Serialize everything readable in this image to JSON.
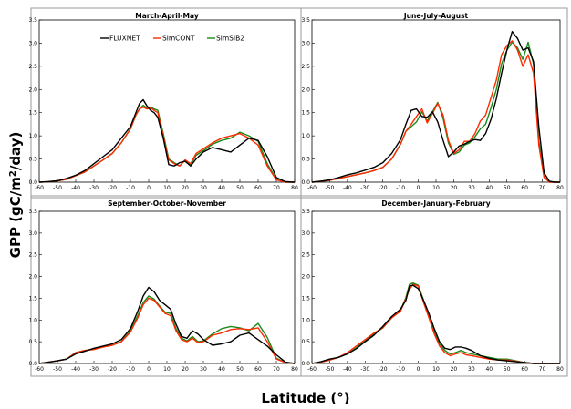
{
  "figure": {
    "ylabel": "GPP (gC/m²/day)",
    "xlabel": "Latitude (°)"
  },
  "legend": [
    {
      "name": "FLUXNET",
      "color": "#000000"
    },
    {
      "name": "SimCONT",
      "color": "#ff2a00"
    },
    {
      "name": "SimSIB2",
      "color": "#1a8a1a"
    }
  ],
  "chart_data": [
    {
      "type": "line",
      "title": "March-April-May",
      "xlim": [
        -60,
        80
      ],
      "ylim": [
        0,
        3.5
      ],
      "xticks": [
        -60,
        -50,
        -40,
        -30,
        -20,
        -10,
        0,
        10,
        20,
        30,
        40,
        50,
        60,
        70,
        80
      ],
      "yticks": [
        0.0,
        0.5,
        1.0,
        1.5,
        2.0,
        2.5,
        3.0,
        3.5
      ],
      "x": [
        -60,
        -55,
        -50,
        -45,
        -40,
        -35,
        -30,
        -25,
        -20,
        -15,
        -10,
        -7,
        -5,
        -3,
        -1,
        1,
        3,
        5,
        8,
        11,
        14,
        17,
        20,
        23,
        26,
        30,
        35,
        40,
        45,
        50,
        55,
        60,
        65,
        70,
        75,
        80
      ],
      "series": [
        {
          "name": "FLUXNET",
          "color": "#000000",
          "values": [
            0.0,
            0.01,
            0.03,
            0.08,
            0.15,
            0.25,
            0.4,
            0.55,
            0.7,
            0.95,
            1.2,
            1.5,
            1.7,
            1.78,
            1.65,
            1.55,
            1.5,
            1.4,
            0.95,
            0.38,
            0.35,
            0.42,
            0.45,
            0.35,
            0.5,
            0.65,
            0.75,
            0.7,
            0.65,
            0.8,
            0.95,
            0.9,
            0.55,
            0.1,
            0.01,
            0.0
          ]
        },
        {
          "name": "SimCONT",
          "color": "#ff2a00",
          "values": [
            0.0,
            0.01,
            0.03,
            0.06,
            0.14,
            0.22,
            0.35,
            0.48,
            0.62,
            0.85,
            1.15,
            1.45,
            1.58,
            1.62,
            1.58,
            1.6,
            1.55,
            1.5,
            1.0,
            0.48,
            0.4,
            0.35,
            0.48,
            0.4,
            0.62,
            0.72,
            0.85,
            0.95,
            1.0,
            1.05,
            0.95,
            0.8,
            0.35,
            0.05,
            0.0,
            0.0
          ]
        },
        {
          "name": "SimSIB2",
          "color": "#1a8a1a",
          "values": [
            0.0,
            0.01,
            0.03,
            0.06,
            0.14,
            0.22,
            0.35,
            0.48,
            0.62,
            0.85,
            1.15,
            1.45,
            1.58,
            1.66,
            1.6,
            1.62,
            1.58,
            1.55,
            1.05,
            0.5,
            0.42,
            0.35,
            0.48,
            0.38,
            0.58,
            0.68,
            0.82,
            0.9,
            0.95,
            1.08,
            1.0,
            0.88,
            0.4,
            0.06,
            0.0,
            0.0
          ]
        }
      ]
    },
    {
      "type": "line",
      "title": "June-July-August",
      "xlim": [
        -60,
        80
      ],
      "ylim": [
        0,
        3.5
      ],
      "xticks": [
        -60,
        -50,
        -40,
        -30,
        -20,
        -10,
        0,
        10,
        20,
        30,
        40,
        50,
        60,
        70,
        80
      ],
      "yticks": [
        0.0,
        0.5,
        1.0,
        1.5,
        2.0,
        2.5,
        3.0,
        3.5
      ],
      "x": [
        -60,
        -55,
        -50,
        -45,
        -40,
        -35,
        -30,
        -25,
        -20,
        -15,
        -10,
        -7,
        -4,
        -1,
        2,
        5,
        8,
        11,
        14,
        17,
        20,
        23,
        26,
        29,
        32,
        35,
        38,
        41,
        44,
        47,
        50,
        53,
        56,
        59,
        62,
        65,
        68,
        71,
        74,
        77,
        80
      ],
      "series": [
        {
          "name": "FLUXNET",
          "color": "#000000",
          "values": [
            0.0,
            0.02,
            0.05,
            0.1,
            0.16,
            0.2,
            0.26,
            0.32,
            0.42,
            0.62,
            0.92,
            1.25,
            1.55,
            1.58,
            1.42,
            1.4,
            1.52,
            1.3,
            0.9,
            0.55,
            0.65,
            0.78,
            0.82,
            0.88,
            0.92,
            0.9,
            1.05,
            1.35,
            1.8,
            2.35,
            2.85,
            3.25,
            3.1,
            2.85,
            2.9,
            2.6,
            1.2,
            0.2,
            0.02,
            0.0,
            0.0
          ]
        },
        {
          "name": "SimCONT",
          "color": "#ff2a00",
          "values": [
            0.0,
            0.02,
            0.04,
            0.08,
            0.12,
            0.16,
            0.2,
            0.25,
            0.32,
            0.5,
            0.82,
            1.1,
            1.25,
            1.42,
            1.58,
            1.28,
            1.48,
            1.7,
            1.45,
            0.9,
            0.62,
            0.7,
            0.88,
            0.88,
            1.05,
            1.32,
            1.45,
            1.82,
            2.2,
            2.75,
            2.95,
            3.05,
            2.85,
            2.5,
            2.75,
            2.35,
            0.8,
            0.1,
            0.0,
            0.0,
            0.0
          ]
        },
        {
          "name": "SimSIB2",
          "color": "#1a8a1a",
          "values": [
            0.0,
            0.02,
            0.04,
            0.08,
            0.12,
            0.16,
            0.2,
            0.25,
            0.32,
            0.5,
            0.82,
            1.1,
            1.2,
            1.3,
            1.52,
            1.32,
            1.52,
            1.72,
            1.38,
            0.85,
            0.6,
            0.65,
            0.8,
            0.85,
            0.98,
            1.15,
            1.25,
            1.6,
            2.0,
            2.55,
            2.85,
            3.02,
            2.9,
            2.65,
            3.02,
            2.55,
            0.9,
            0.12,
            0.0,
            0.0,
            0.0
          ]
        }
      ]
    },
    {
      "type": "line",
      "title": "September-October-November",
      "xlim": [
        -60,
        80
      ],
      "ylim": [
        0,
        3.5
      ],
      "xticks": [
        -60,
        -50,
        -40,
        -30,
        -20,
        -10,
        0,
        10,
        20,
        30,
        40,
        50,
        60,
        70,
        80
      ],
      "yticks": [
        0.0,
        0.5,
        1.0,
        1.5,
        2.0,
        2.5,
        3.0,
        3.5
      ],
      "x": [
        -60,
        -55,
        -50,
        -45,
        -40,
        -35,
        -30,
        -25,
        -20,
        -15,
        -10,
        -6,
        -3,
        0,
        3,
        6,
        9,
        12,
        15,
        18,
        21,
        24,
        27,
        30,
        35,
        40,
        45,
        50,
        55,
        60,
        65,
        70,
        75,
        80
      ],
      "series": [
        {
          "name": "FLUXNET",
          "color": "#000000",
          "values": [
            0.0,
            0.03,
            0.06,
            0.1,
            0.22,
            0.28,
            0.35,
            0.4,
            0.45,
            0.55,
            0.8,
            1.2,
            1.55,
            1.75,
            1.65,
            1.45,
            1.35,
            1.25,
            0.9,
            0.62,
            0.58,
            0.75,
            0.68,
            0.55,
            0.42,
            0.45,
            0.5,
            0.65,
            0.7,
            0.55,
            0.4,
            0.2,
            0.03,
            0.0
          ]
        },
        {
          "name": "SimCONT",
          "color": "#ff2a00",
          "values": [
            0.0,
            0.03,
            0.06,
            0.1,
            0.25,
            0.3,
            0.32,
            0.38,
            0.42,
            0.5,
            0.72,
            1.05,
            1.35,
            1.5,
            1.45,
            1.3,
            1.15,
            1.1,
            0.75,
            0.55,
            0.5,
            0.58,
            0.48,
            0.5,
            0.65,
            0.7,
            0.78,
            0.8,
            0.78,
            0.82,
            0.5,
            0.1,
            0.02,
            0.0
          ]
        },
        {
          "name": "SimSIB2",
          "color": "#1a8a1a",
          "values": [
            0.0,
            0.03,
            0.06,
            0.1,
            0.25,
            0.3,
            0.33,
            0.38,
            0.42,
            0.5,
            0.75,
            1.1,
            1.4,
            1.55,
            1.48,
            1.32,
            1.18,
            1.15,
            0.8,
            0.58,
            0.52,
            0.62,
            0.5,
            0.52,
            0.68,
            0.8,
            0.85,
            0.82,
            0.75,
            0.92,
            0.6,
            0.12,
            0.02,
            0.0
          ]
        }
      ]
    },
    {
      "type": "line",
      "title": "December-January-February",
      "xlim": [
        -60,
        80
      ],
      "ylim": [
        0,
        3.5
      ],
      "xticks": [
        -60,
        -50,
        -40,
        -30,
        -20,
        -10,
        0,
        10,
        20,
        30,
        40,
        50,
        60,
        70,
        80
      ],
      "yticks": [
        0.0,
        0.5,
        1.0,
        1.5,
        2.0,
        2.5,
        3.0,
        3.5
      ],
      "x": [
        -60,
        -55,
        -50,
        -45,
        -40,
        -35,
        -30,
        -25,
        -20,
        -15,
        -10,
        -7,
        -5,
        -3,
        0,
        3,
        6,
        9,
        12,
        15,
        18,
        21,
        24,
        27,
        30,
        35,
        40,
        45,
        50,
        55,
        60,
        65,
        70,
        75,
        80
      ],
      "series": [
        {
          "name": "FLUXNET",
          "color": "#000000",
          "values": [
            0.0,
            0.04,
            0.1,
            0.14,
            0.22,
            0.34,
            0.5,
            0.65,
            0.85,
            1.08,
            1.25,
            1.45,
            1.78,
            1.8,
            1.72,
            1.45,
            1.15,
            0.8,
            0.5,
            0.35,
            0.32,
            0.38,
            0.38,
            0.35,
            0.3,
            0.18,
            0.12,
            0.08,
            0.06,
            0.04,
            0.02,
            0.0,
            0.0,
            0.0,
            0.0
          ]
        },
        {
          "name": "SimCONT",
          "color": "#ff2a00",
          "values": [
            0.0,
            0.03,
            0.08,
            0.14,
            0.25,
            0.4,
            0.55,
            0.7,
            0.82,
            1.05,
            1.2,
            1.5,
            1.7,
            1.82,
            1.78,
            1.4,
            1.05,
            0.68,
            0.4,
            0.25,
            0.18,
            0.22,
            0.25,
            0.2,
            0.18,
            0.14,
            0.1,
            0.08,
            0.08,
            0.05,
            0.02,
            0.0,
            0.0,
            0.0,
            0.0
          ]
        },
        {
          "name": "SimSIB2",
          "color": "#1a8a1a",
          "values": [
            0.0,
            0.03,
            0.08,
            0.14,
            0.22,
            0.36,
            0.52,
            0.68,
            0.82,
            1.05,
            1.22,
            1.52,
            1.82,
            1.85,
            1.8,
            1.45,
            1.1,
            0.72,
            0.45,
            0.3,
            0.22,
            0.25,
            0.3,
            0.25,
            0.22,
            0.18,
            0.14,
            0.1,
            0.1,
            0.06,
            0.02,
            0.0,
            0.0,
            0.0,
            0.0
          ]
        }
      ]
    }
  ]
}
